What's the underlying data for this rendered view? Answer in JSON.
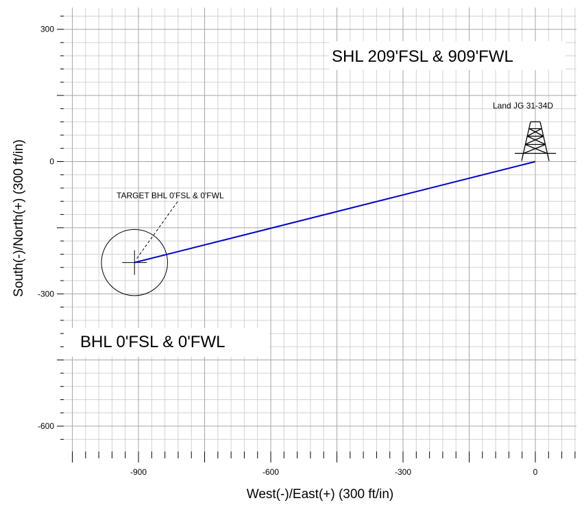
{
  "chart_data": {
    "type": "line",
    "xlabel": "West(-)/East(+) (300 ft/in)",
    "ylabel": "South(-)/North(+) (300 ft/in)",
    "xlim": [
      -1080,
      90
    ],
    "ylim": [
      -660,
      345
    ],
    "x_ticks": [
      -900,
      -600,
      -300,
      0
    ],
    "y_ticks": [
      300,
      0,
      -300,
      -600
    ],
    "grid": true,
    "series": [
      {
        "color": "#0000cc",
        "x": [
          0,
          -909
        ],
        "y": [
          0,
          -229
        ]
      }
    ],
    "target": {
      "x": -909,
      "y": -229,
      "radius": 75
    },
    "rig": {
      "x": 0,
      "y": 0
    },
    "annotations": {
      "shl": "SHL 209'FSL & 909'FWL",
      "bhl": "BHL 0'FSL & 0'FWL",
      "target_label": "TARGET BHL 0'FSL & 0'FWL",
      "well_name": "Land JG 31-34D"
    }
  }
}
